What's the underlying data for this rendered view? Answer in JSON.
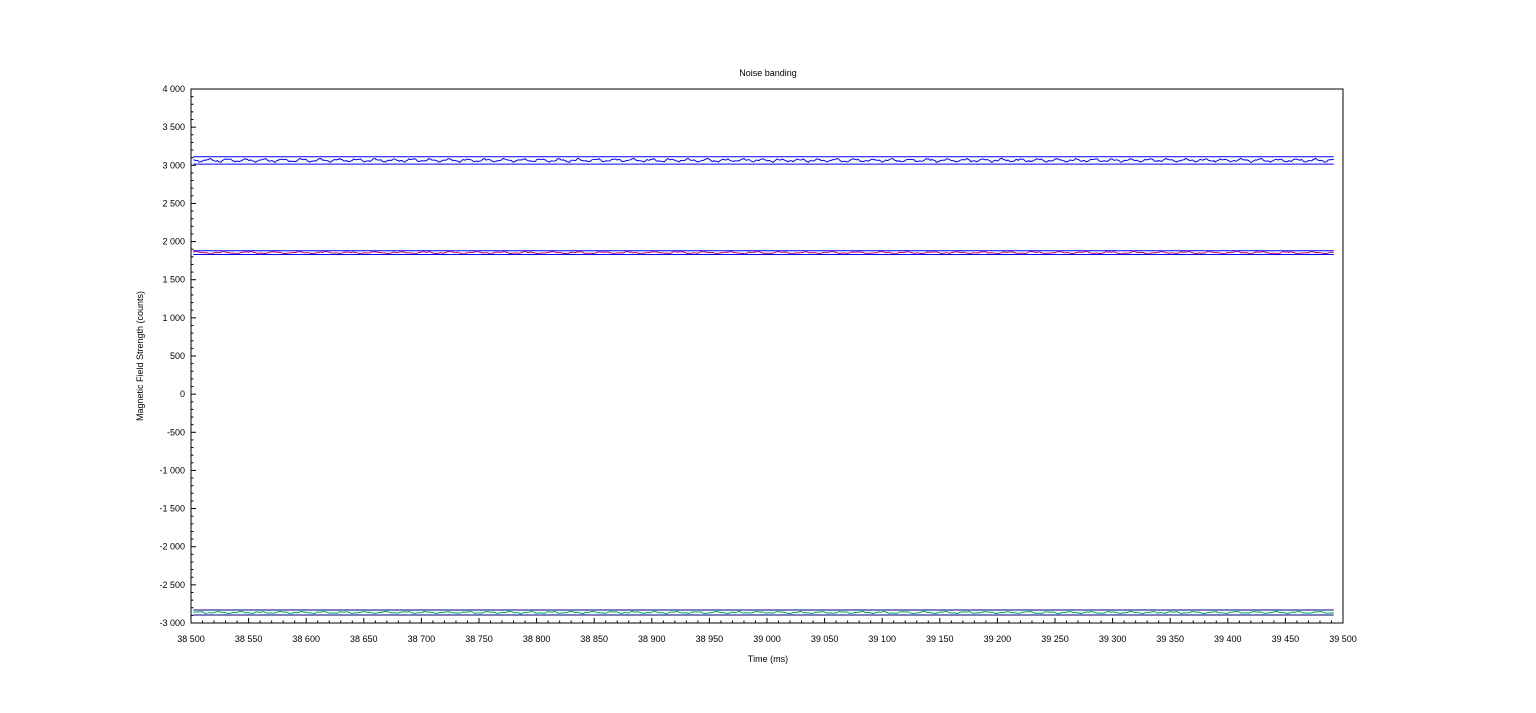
{
  "chart_data": {
    "type": "line",
    "title": "Noise banding",
    "xlabel": "Time (ms)",
    "ylabel": "Magnetic Field Strength (counts)",
    "xlim": [
      38500,
      39500
    ],
    "ylim": [
      -3000,
      4000
    ],
    "x_ticks": [
      38500,
      38550,
      38600,
      38650,
      38700,
      38750,
      38800,
      38850,
      38900,
      38950,
      39000,
      39050,
      39100,
      39150,
      39200,
      39250,
      39300,
      39350,
      39400,
      39450,
      39500
    ],
    "x_tick_labels": [
      "38 500",
      "38 550",
      "38 600",
      "38 650",
      "38 700",
      "38 750",
      "38 800",
      "38 850",
      "38 900",
      "38 950",
      "39 000",
      "39 050",
      "39 100",
      "39 150",
      "39 200",
      "39 250",
      "39 300",
      "39 350",
      "39 400",
      "39 450",
      "39 500"
    ],
    "y_ticks": [
      4000,
      3500,
      3000,
      2500,
      2000,
      1500,
      1000,
      500,
      0,
      -500,
      -1000,
      -1500,
      -2000,
      -2500,
      -3000
    ],
    "y_tick_labels": [
      "4 000",
      "3 500",
      "3 000",
      "2 500",
      "2 000",
      "1 500",
      "1 000",
      "500",
      "0",
      "-500",
      "-1 000",
      "-1 500",
      "-2 000",
      "-2 500",
      "-3 000"
    ],
    "grid": false,
    "legend": "none",
    "x_range": [
      38502,
      39492
    ],
    "series": [
      {
        "color": "#0000ff",
        "kind": "band-upper",
        "value": 3112
      },
      {
        "color": "#0000ff",
        "kind": "noisy",
        "mean": 3065,
        "amplitude": 22,
        "period_ms": 16
      },
      {
        "color": "#0000ff",
        "kind": "band-lower",
        "value": 3015
      },
      {
        "color": "#0000ff",
        "kind": "band-upper",
        "value": 1880
      },
      {
        "color": "#c0007a",
        "kind": "noisy",
        "mean": 1855,
        "amplitude": 15,
        "period_ms": 22
      },
      {
        "color": "#0000ff",
        "kind": "band-lower",
        "value": 1830
      },
      {
        "color": "#000080",
        "kind": "band-upper",
        "value": -2830
      },
      {
        "color": "#00a06a",
        "kind": "noisy",
        "mean": -2862,
        "amplitude": 14,
        "period_ms": 18
      },
      {
        "color": "#000080",
        "kind": "band-lower",
        "value": -2895
      }
    ]
  }
}
